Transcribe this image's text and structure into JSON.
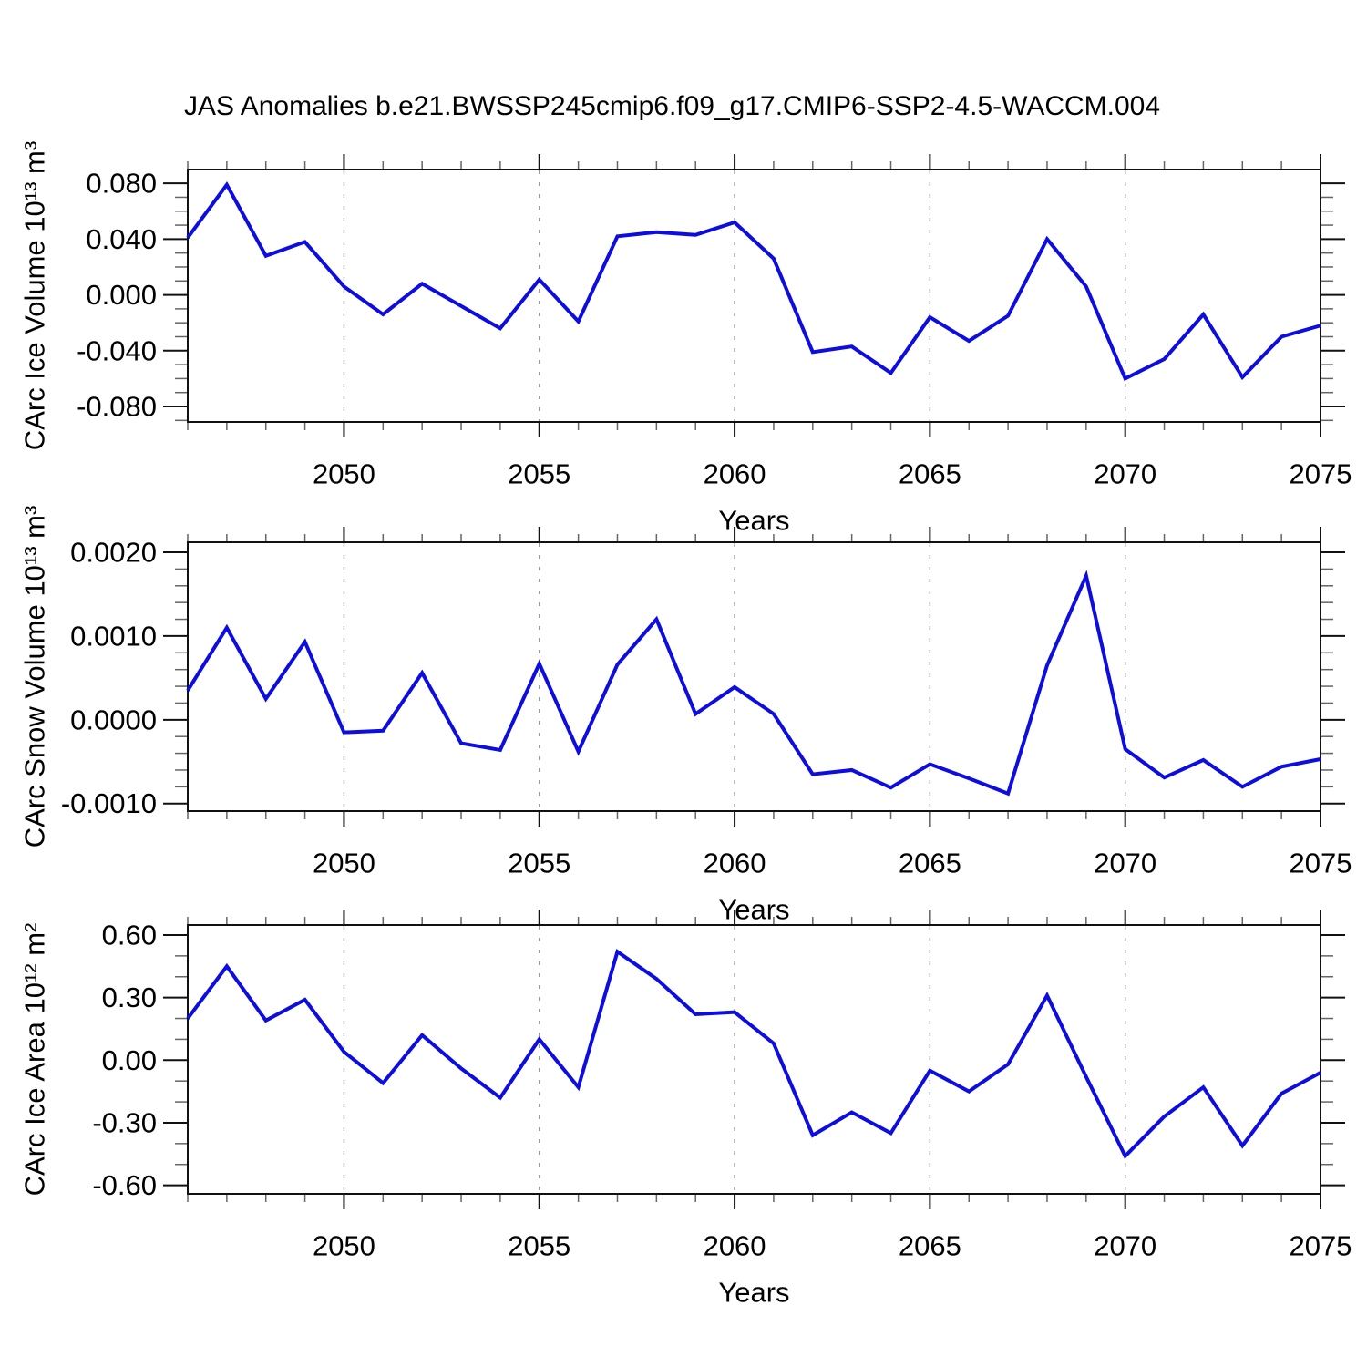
{
  "title": "JAS Anomalies b.e21.BWSSP245cmip6.f09_g17.CMIP6-SSP2-4.5-WACCM.004",
  "colors": {
    "line": "#0d0de0",
    "grid": "#949494",
    "axis": "#111111",
    "minor_tick": "#666666"
  },
  "chart_data": [
    {
      "type": "line",
      "ylabel": "CArc Ice Volume 10¹³ m³",
      "xlabel": "Years",
      "legend": "none",
      "grid": "vertical-dashed",
      "xlim": [
        2046,
        2075
      ],
      "ylim": [
        -0.0911,
        0.0899
      ],
      "x": [
        2046,
        2047,
        2048,
        2049,
        2050,
        2051,
        2052,
        2053,
        2054,
        2055,
        2056,
        2057,
        2058,
        2059,
        2060,
        2061,
        2062,
        2063,
        2064,
        2065,
        2066,
        2067,
        2068,
        2069,
        2070,
        2071,
        2072,
        2073,
        2074,
        2075
      ],
      "values": [
        0.041,
        0.079,
        0.028,
        0.038,
        0.006,
        -0.014,
        0.008,
        -0.008,
        -0.024,
        0.011,
        -0.019,
        0.042,
        0.045,
        0.043,
        0.052,
        0.026,
        -0.041,
        -0.037,
        -0.056,
        -0.016,
        -0.033,
        -0.015,
        0.04,
        0.006,
        -0.06,
        -0.046,
        -0.014,
        -0.059,
        -0.03,
        -0.022
      ],
      "yticks": {
        "major": [
          0.08,
          0.04,
          0.0,
          -0.04,
          -0.08
        ],
        "labels": [
          "0.080",
          "0.040",
          "0.000",
          "-0.040",
          "-0.080"
        ],
        "minor_step": 0.01
      },
      "xticks": {
        "major": [
          2050,
          2055,
          2060,
          2065,
          2070,
          2075
        ],
        "labels": [
          "2050",
          "2055",
          "2060",
          "2065",
          "2070",
          "2075"
        ],
        "minor_step": 1
      },
      "grid_x": [
        2050,
        2055,
        2060,
        2065,
        2070
      ]
    },
    {
      "type": "line",
      "ylabel": "CArc Snow Volume 10¹³ m³",
      "xlabel": "Years",
      "legend": "none",
      "grid": "vertical-dashed",
      "xlim": [
        2046,
        2075
      ],
      "ylim": [
        -0.00109,
        0.00212
      ],
      "x": [
        2046,
        2047,
        2048,
        2049,
        2050,
        2051,
        2052,
        2053,
        2054,
        2055,
        2056,
        2057,
        2058,
        2059,
        2060,
        2061,
        2062,
        2063,
        2064,
        2065,
        2066,
        2067,
        2068,
        2069,
        2070,
        2071,
        2072,
        2073,
        2074,
        2075
      ],
      "values": [
        0.00035,
        0.0011,
        0.00025,
        0.00093,
        -0.00015,
        -0.00013,
        0.00056,
        -0.00028,
        -0.00036,
        0.00067,
        -0.00038,
        0.00066,
        0.0012,
        7e-05,
        0.00039,
        7e-05,
        -0.00065,
        -0.0006,
        -0.00081,
        -0.00053,
        -0.0007,
        -0.00088,
        0.00065,
        0.00172,
        -0.00035,
        -0.00069,
        -0.00048,
        -0.0008,
        -0.00056,
        -0.00047
      ],
      "yticks": {
        "major": [
          0.002,
          0.001,
          0.0,
          -0.001
        ],
        "labels": [
          "0.0020",
          "0.0010",
          "0.0000",
          "-0.0010"
        ],
        "minor_step": 0.0002
      },
      "xticks": {
        "major": [
          2050,
          2055,
          2060,
          2065,
          2070,
          2075
        ],
        "labels": [
          "2050",
          "2055",
          "2060",
          "2065",
          "2070",
          "2075"
        ],
        "minor_step": 1
      },
      "grid_x": [
        2050,
        2055,
        2060,
        2065,
        2070
      ]
    },
    {
      "type": "line",
      "ylabel": "CArc Ice Area 10¹² m²",
      "xlabel": "Years",
      "legend": "none",
      "grid": "vertical-dashed",
      "xlim": [
        2046,
        2075
      ],
      "ylim": [
        -0.641,
        0.648
      ],
      "x": [
        2046,
        2047,
        2048,
        2049,
        2050,
        2051,
        2052,
        2053,
        2054,
        2055,
        2056,
        2057,
        2058,
        2059,
        2060,
        2061,
        2062,
        2063,
        2064,
        2065,
        2066,
        2067,
        2068,
        2069,
        2070,
        2071,
        2072,
        2073,
        2074,
        2075
      ],
      "values": [
        0.2,
        0.45,
        0.19,
        0.29,
        0.04,
        -0.11,
        0.12,
        -0.04,
        -0.18,
        0.1,
        -0.13,
        0.52,
        0.39,
        0.22,
        0.23,
        0.08,
        -0.36,
        -0.25,
        -0.35,
        -0.05,
        -0.15,
        -0.02,
        0.31,
        -0.08,
        -0.46,
        -0.27,
        -0.13,
        -0.41,
        -0.16,
        -0.06
      ],
      "yticks": {
        "major": [
          0.6,
          0.3,
          0.0,
          -0.3,
          -0.6
        ],
        "labels": [
          "0.60",
          "0.30",
          "0.00",
          "-0.30",
          "-0.60"
        ],
        "minor_step": 0.1
      },
      "xticks": {
        "major": [
          2050,
          2055,
          2060,
          2065,
          2070,
          2075
        ],
        "labels": [
          "2050",
          "2055",
          "2060",
          "2065",
          "2070",
          "2075"
        ],
        "minor_step": 1
      },
      "grid_x": [
        2050,
        2055,
        2060,
        2065,
        2070
      ]
    }
  ]
}
